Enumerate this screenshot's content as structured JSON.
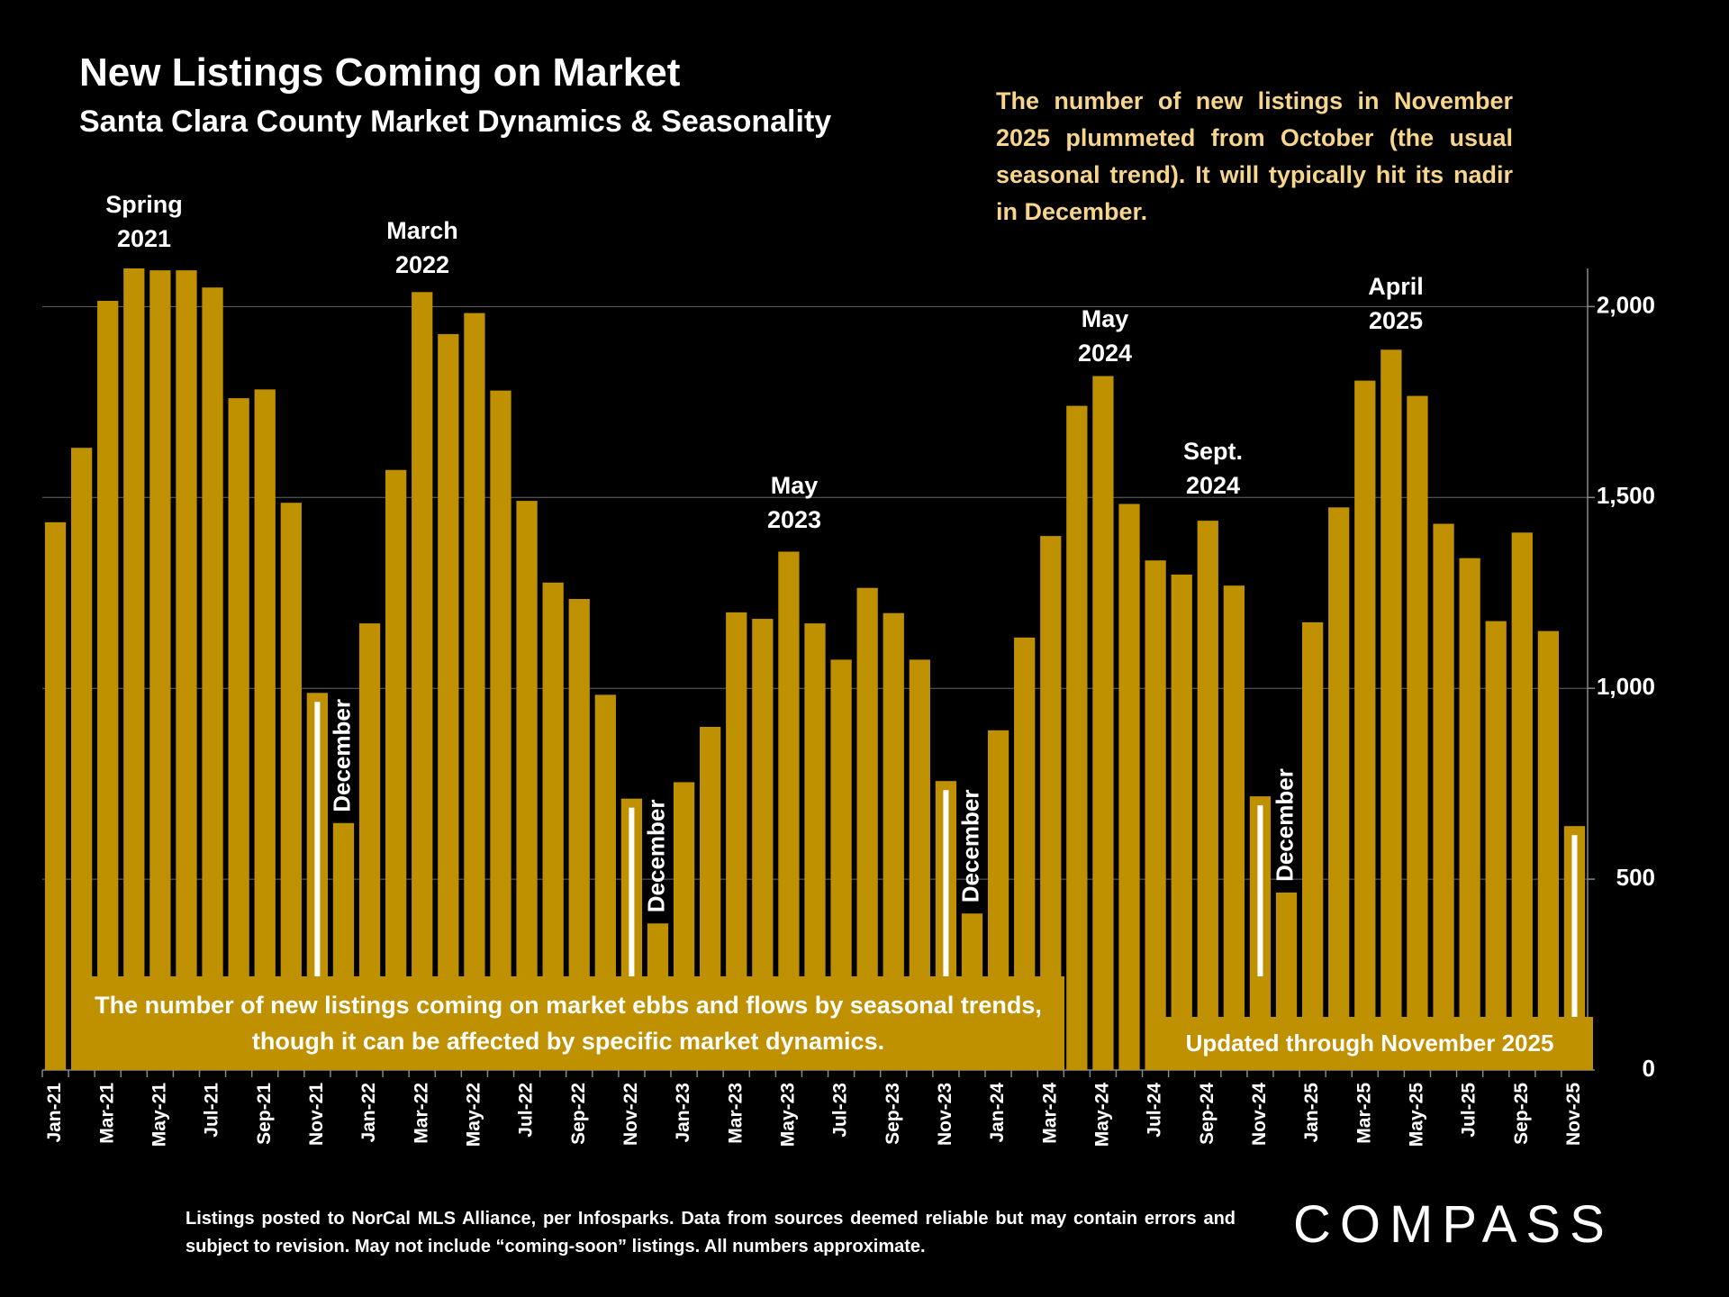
{
  "chart_data": {
    "type": "bar",
    "title": "New Listings Coming on Market",
    "subtitle": "Santa Clara County Market Dynamics & Seasonality",
    "note": "The number of new listings in November 2025 plummeted from October (the usual seasonal trend).  It will typically hit its nadir in December.",
    "caption": "The number of new listings coming on market ebbs and flows by seasonal trends, though it can be affected by specific market dynamics.",
    "updated": "Updated through November 2025",
    "categories": [
      "Jan-21",
      null,
      "Mar-21",
      null,
      "May-21",
      null,
      "Jul-21",
      null,
      "Sep-21",
      null,
      "Nov-21",
      null,
      "Jan-22",
      null,
      "Mar-22",
      null,
      "May-22",
      null,
      "Jul-22",
      null,
      "Sep-22",
      null,
      "Nov-22",
      null,
      "Jan-23",
      null,
      "Mar-23",
      null,
      "May-23",
      null,
      "Jul-23",
      null,
      "Sep-23",
      null,
      "Nov-23",
      null,
      "Jan-24",
      null,
      "Mar-24",
      null,
      "May-24",
      null,
      "Jul-24",
      null,
      "Sep-24",
      null,
      "Nov-24",
      null,
      "Jan-25",
      null,
      "Mar-25",
      null,
      "May-25",
      null,
      "Jul-25",
      null,
      "Sep-25",
      null,
      "Nov-25"
    ],
    "values": [
      1435,
      1630,
      2015,
      2100,
      2095,
      2095,
      2050,
      1760,
      1783,
      1486,
      988,
      647,
      1170,
      1572,
      2038,
      1928,
      1983,
      1780,
      1491,
      1277,
      1234,
      983,
      711,
      384,
      754,
      899,
      1199,
      1182,
      1358,
      1170,
      1075,
      1263,
      1197,
      1075,
      757,
      410,
      890,
      1133,
      1399,
      1740,
      1818,
      1483,
      1335,
      1298,
      1439,
      1269,
      717,
      465,
      1173,
      1474,
      1806,
      1887,
      1766,
      1431,
      1341,
      1176,
      1408,
      1150,
      639
    ],
    "color": "#bf9000",
    "ylim": [
      0,
      2100
    ],
    "yticks": [
      0,
      500,
      {
        "value": 1000,
        "label": "1,000"
      },
      {
        "value": 1500,
        "label": "1,500"
      },
      {
        "value": 2000,
        "label": "2,000"
      }
    ],
    "grid": true,
    "annotations": [
      "Spring 2021",
      "March 2022",
      "May 2023",
      "May 2024",
      "Sept. 2024",
      "April 2025"
    ],
    "period_labels": [
      "December",
      "December",
      "December",
      "December"
    ]
  },
  "footer": {
    "source": "Listings posted to NorCal MLS Alliance, per Infosparks. Data from sources deemed reliable but may contain errors and subject to revision. May not include “coming-soon” listings. All numbers approximate.",
    "brand": "COMPASS"
  }
}
